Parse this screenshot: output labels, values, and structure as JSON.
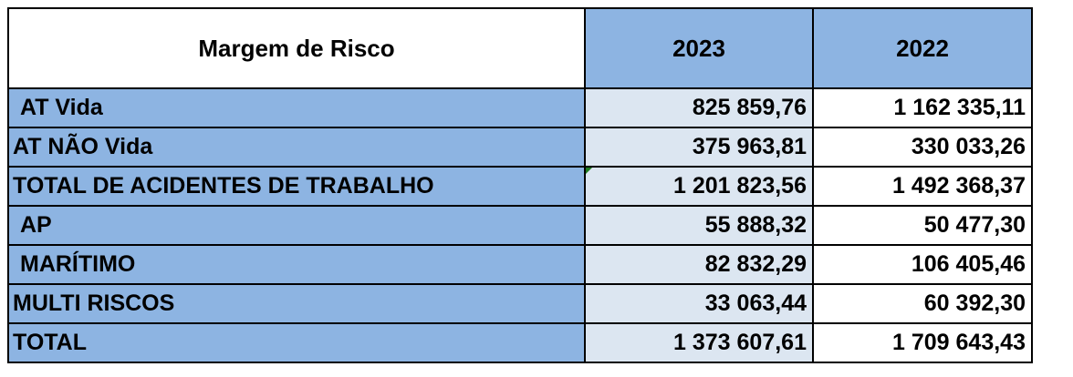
{
  "table": {
    "headers": {
      "label": "Margem de Risco",
      "year_2023": "2023",
      "year_2022": "2022"
    },
    "rows": [
      {
        "label": "AT Vida",
        "v2023": "825 859,76",
        "v2022": "1 162 335,11"
      },
      {
        "label": "AT NÃO Vida",
        "v2023": "375 963,81",
        "v2022": "330 033,26"
      },
      {
        "label": "TOTAL DE ACIDENTES DE TRABALHO",
        "v2023": "1 201 823,56",
        "v2022": "1 492 368,37"
      },
      {
        "label": "AP",
        "v2023": "55 888,32",
        "v2022": "50 477,30"
      },
      {
        "label": "MARÍTIMO",
        "v2023": "82 832,29",
        "v2022": "106 405,46"
      },
      {
        "label": "MULTI RISCOS",
        "v2023": "33 063,44",
        "v2022": "60 392,30"
      },
      {
        "label": "TOTAL",
        "v2023": "1 373 607,61",
        "v2022": "1 709 643,43"
      }
    ]
  },
  "colors": {
    "header_blue": "#8db4e2",
    "label_blue": "#8db4e2",
    "light_blue": "#dce6f1",
    "corner_mark_green": "#1f7a1f"
  }
}
